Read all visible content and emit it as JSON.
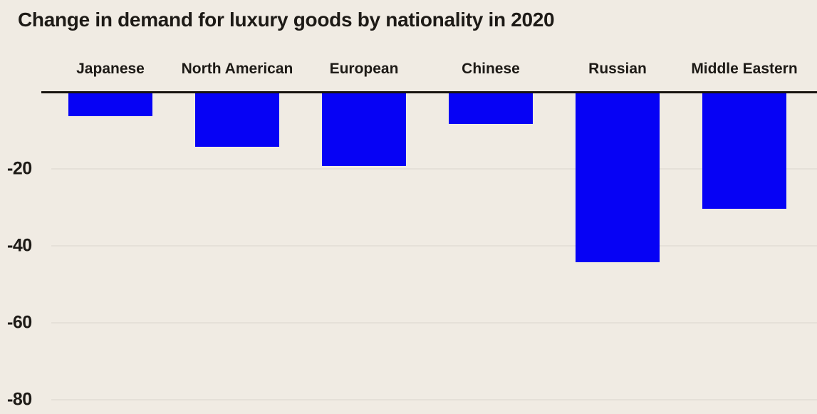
{
  "colors": {
    "background": "#f0ebe3",
    "bar": "#0602f5",
    "axis": "#17130e",
    "gridline": "#e5e0d8",
    "text": "#1d1a16"
  },
  "chart_data": {
    "type": "bar",
    "title": "Change in demand for luxury goods by nationality in 2020",
    "categories": [
      "Japanese",
      "North American",
      "European",
      "Chinese",
      "Russian",
      "Middle Eastern"
    ],
    "values": [
      -6,
      -14,
      -19,
      -8,
      -44,
      -30
    ],
    "xlabel": "",
    "ylabel": "",
    "ylim": [
      -84,
      0
    ],
    "yticks": [
      -20,
      -40,
      -60,
      -80
    ],
    "grid": true,
    "legend": false,
    "orientation": "vertical",
    "baseline_position": "top",
    "category_labels_position": "above baseline"
  }
}
